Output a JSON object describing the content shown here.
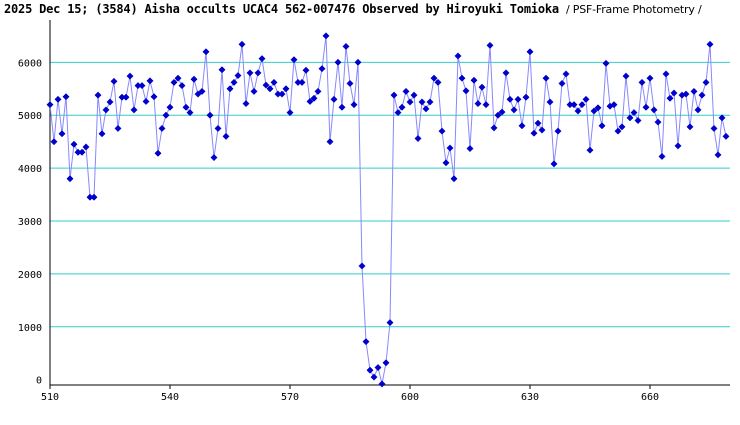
{
  "title": "2025 Dec 15; (3584) Aisha occults UCAC4 562-007476 Observed by Hiroyuki Tomioka",
  "subtitle": "/ PSF-Frame Photometry /",
  "chart_data": {
    "type": "line",
    "title": "2025 Dec 15; (3584) Aisha occults UCAC4 562-007476 Observed by Hiroyuki Tomioka",
    "subtitle": "/ PSF-Frame Photometry /",
    "xlabel": "",
    "ylabel": "",
    "xlim": [
      510,
      680
    ],
    "ylim": [
      -100,
      6800
    ],
    "xticks": [
      510,
      540,
      570,
      600,
      630,
      660
    ],
    "yticks": [
      0,
      1000,
      2000,
      3000,
      4000,
      5000,
      6000
    ],
    "grid": "horizontal",
    "line_color": "#8888ff",
    "marker_color": "#0000cc",
    "grid_color": "#33cccc",
    "series": [
      {
        "x_start": 510,
        "x_step": 1,
        "values": [
          5200,
          4500,
          5300,
          4650,
          5350,
          3800,
          4450,
          4300,
          4300,
          4400,
          3450,
          3450,
          5380,
          4650,
          5100,
          5250,
          5640,
          4750,
          5340,
          5340,
          5740,
          5100,
          5560,
          5560,
          5260,
          5650,
          5350,
          4280,
          4750,
          5000,
          5150,
          5620,
          5700,
          5560,
          5150,
          5050,
          5680,
          5400,
          5450,
          6200,
          5000,
          4200,
          4750,
          5860,
          4600,
          5500,
          5620,
          5750,
          6340,
          5220,
          5800,
          5450,
          5800,
          6070,
          5570,
          5500,
          5620,
          5400,
          5400,
          5500,
          5050,
          6050,
          5620,
          5620,
          5850,
          5260,
          5320,
          5450,
          5880,
          6500,
          4500,
          5300,
          6000,
          5150,
          6300,
          5600,
          5200,
          6000,
          2150,
          720,
          180,
          50,
          230,
          -80,
          320,
          1080,
          5380,
          5050,
          5150,
          5450,
          5250,
          5380,
          4560,
          5250,
          5120,
          5250,
          5700,
          5620,
          4700,
          4100,
          4380,
          3800,
          6120,
          5700,
          5460,
          4370,
          5660,
          5220,
          5530,
          5200,
          6320,
          4760,
          5000,
          5060,
          5800,
          5300,
          5100,
          5300,
          4800,
          5340,
          6200,
          4660,
          4850,
          4720,
          5700,
          5250,
          4080,
          4700,
          5600,
          5780,
          5200,
          5200,
          5080,
          5200,
          5300,
          4340,
          5080,
          5140,
          4800,
          5980,
          5170,
          5200,
          4700,
          4780,
          5740,
          4950,
          5050,
          4900,
          5620,
          5150,
          5700,
          5100,
          4870,
          4220,
          5780,
          5320,
          5420,
          4420,
          5380,
          5400,
          4780,
          5450,
          5100,
          5380,
          5620,
          6340,
          4750,
          4250,
          4950,
          4600
        ]
      }
    ]
  }
}
